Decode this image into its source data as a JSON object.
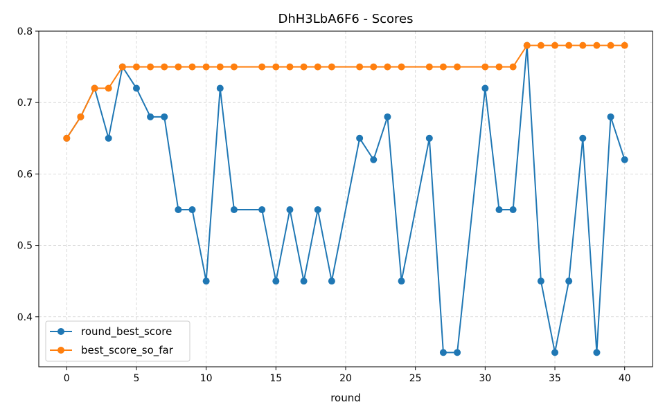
{
  "chart_data": {
    "type": "line",
    "title": "DhH3LbA6F6 - Scores",
    "xlabel": "round",
    "ylabel": "",
    "xlim": [
      -2,
      42
    ],
    "ylim": [
      0.33,
      0.8
    ],
    "xticks": [
      0,
      5,
      10,
      15,
      20,
      25,
      30,
      35,
      40
    ],
    "yticks": [
      0.4,
      0.5,
      0.6,
      0.7,
      0.8
    ],
    "ytick_labels": [
      "0.4",
      "0.5",
      "0.6",
      "0.7",
      "0.8"
    ],
    "grid": true,
    "legend_position": "bottom-left",
    "series": [
      {
        "name": "round_best_score",
        "color": "#1f77b4",
        "marker": "circle",
        "x": [
          0,
          1,
          2,
          3,
          4,
          5,
          6,
          7,
          8,
          9,
          10,
          11,
          12,
          14,
          15,
          16,
          17,
          18,
          19,
          21,
          22,
          23,
          24,
          26,
          27,
          28,
          30,
          31,
          32,
          33,
          34,
          35,
          36,
          37,
          38,
          39,
          40
        ],
        "y": [
          0.65,
          0.68,
          0.72,
          0.65,
          0.75,
          0.72,
          0.68,
          0.68,
          0.55,
          0.55,
          0.45,
          0.72,
          0.55,
          0.55,
          0.45,
          0.55,
          0.45,
          0.55,
          0.45,
          0.65,
          0.62,
          0.68,
          0.45,
          0.65,
          0.35,
          0.35,
          0.72,
          0.55,
          0.55,
          0.78,
          0.45,
          0.35,
          0.45,
          0.65,
          0.35,
          0.68,
          0.62
        ]
      },
      {
        "name": "best_score_so_far",
        "color": "#ff7f0e",
        "marker": "circle",
        "x": [
          0,
          1,
          2,
          3,
          4,
          5,
          6,
          7,
          8,
          9,
          10,
          11,
          12,
          14,
          15,
          16,
          17,
          18,
          19,
          21,
          22,
          23,
          24,
          26,
          27,
          28,
          30,
          31,
          32,
          33,
          34,
          35,
          36,
          37,
          38,
          39,
          40
        ],
        "y": [
          0.65,
          0.68,
          0.72,
          0.72,
          0.75,
          0.75,
          0.75,
          0.75,
          0.75,
          0.75,
          0.75,
          0.75,
          0.75,
          0.75,
          0.75,
          0.75,
          0.75,
          0.75,
          0.75,
          0.75,
          0.75,
          0.75,
          0.75,
          0.75,
          0.75,
          0.75,
          0.75,
          0.75,
          0.75,
          0.78,
          0.78,
          0.78,
          0.78,
          0.78,
          0.78,
          0.78,
          0.78
        ]
      }
    ]
  }
}
